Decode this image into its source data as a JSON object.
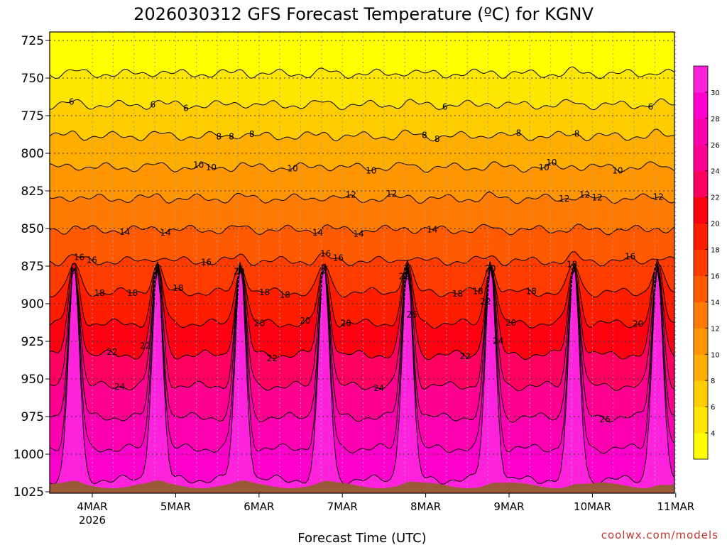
{
  "chart_data": {
    "type": "heatmap",
    "title": "2026030312 GFS Forecast Temperature (ºC) for KGNV",
    "xlabel": "Forecast Time (UTC)",
    "ylabel": "",
    "y_ticks": [
      725,
      750,
      775,
      800,
      825,
      850,
      875,
      900,
      925,
      950,
      975,
      1000,
      1025
    ],
    "ylim": [
      1025,
      720
    ],
    "x_ticks": [
      {
        "label": "4MAR",
        "sub": "2026"
      },
      {
        "label": "5MAR",
        "sub": ""
      },
      {
        "label": "6MAR",
        "sub": ""
      },
      {
        "label": "7MAR",
        "sub": ""
      },
      {
        "label": "8MAR",
        "sub": ""
      },
      {
        "label": "9MAR",
        "sub": ""
      },
      {
        "label": "10MAR",
        "sub": ""
      },
      {
        "label": "11MAR",
        "sub": ""
      }
    ],
    "x_range_days": [
      3.625,
      11.0
    ],
    "colorbar": {
      "levels": [
        4,
        6,
        8,
        10,
        12,
        14,
        16,
        18,
        20,
        22,
        24,
        26,
        28,
        30
      ],
      "colors": [
        "#ffff00",
        "#ffe600",
        "#ffcc00",
        "#ffae00",
        "#ff9500",
        "#ff7a00",
        "#ff5a00",
        "#ff3c00",
        "#ff1d00",
        "#ff0010",
        "#ff0060",
        "#ff0090",
        "#ff00b0",
        "#ff00cc",
        "#ff22dd"
      ]
    },
    "contour_labels": [
      {
        "v": "6"
      },
      {
        "v": "8"
      },
      {
        "v": "10"
      },
      {
        "v": "8"
      },
      {
        "v": "12"
      },
      {
        "v": "14"
      },
      {
        "v": "20"
      },
      {
        "v": "18"
      },
      {
        "v": "16"
      },
      {
        "v": "22"
      },
      {
        "v": "18"
      },
      {
        "v": "10"
      },
      {
        "v": "14"
      },
      {
        "v": "16"
      },
      {
        "v": "18"
      },
      {
        "v": "8"
      },
      {
        "v": "12"
      },
      {
        "v": "10"
      },
      {
        "v": "22"
      },
      {
        "v": "20"
      },
      {
        "v": "18"
      },
      {
        "v": "6"
      },
      {
        "v": "8"
      },
      {
        "v": "10"
      },
      {
        "v": "12"
      },
      {
        "v": "16"
      },
      {
        "v": "22"
      },
      {
        "v": "18"
      },
      {
        "v": "8"
      },
      {
        "v": "10"
      },
      {
        "v": "12"
      },
      {
        "v": "14"
      },
      {
        "v": "18"
      },
      {
        "v": "20"
      },
      {
        "v": "16"
      },
      {
        "v": "6"
      },
      {
        "v": "8"
      },
      {
        "v": "12"
      },
      {
        "v": "14"
      },
      {
        "v": "18"
      },
      {
        "v": "24"
      },
      {
        "v": "22"
      },
      {
        "v": "20"
      },
      {
        "v": "26"
      },
      {
        "v": "6"
      },
      {
        "v": "10"
      },
      {
        "v": "16"
      },
      {
        "v": "18"
      },
      {
        "v": "22"
      },
      {
        "v": "20"
      },
      {
        "v": "26"
      },
      {
        "v": "24"
      },
      {
        "v": "6"
      },
      {
        "v": "8"
      },
      {
        "v": "10"
      },
      {
        "v": "12"
      },
      {
        "v": "14"
      },
      {
        "v": "16"
      },
      {
        "v": "18"
      },
      {
        "v": "20"
      },
      {
        "v": "24"
      },
      {
        "v": "22"
      },
      {
        "v": "20"
      }
    ]
  },
  "credit": "coolwx.com/models"
}
